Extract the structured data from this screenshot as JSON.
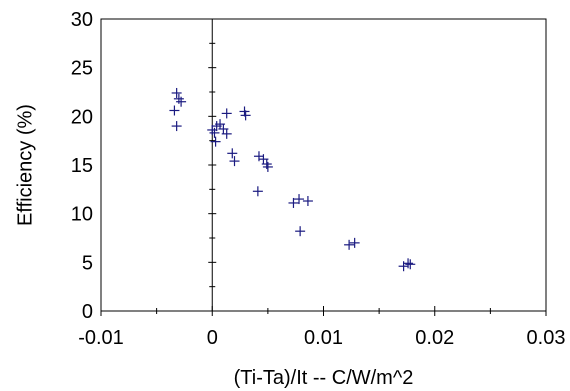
{
  "chart_data": {
    "type": "scatter",
    "title": "",
    "xlabel": "(Ti-Ta)/It -- C/W/m^2",
    "ylabel": "Efficiency (%)",
    "xlim": [
      -0.01,
      0.03
    ],
    "ylim": [
      0,
      30
    ],
    "xticks": [
      -0.01,
      0,
      0.01,
      0.02,
      0.03
    ],
    "xtick_labels": [
      "-0.01",
      "0",
      "0.01",
      "0.02",
      "0.03"
    ],
    "yticks": [
      0,
      5,
      10,
      15,
      20,
      25,
      30
    ],
    "ytick_labels": [
      "0",
      "5",
      "10",
      "15",
      "20",
      "25",
      "30"
    ],
    "grid": false,
    "legend": "none",
    "marker": "plus",
    "marker_color": "#1a1a80",
    "series": [
      {
        "points": [
          {
            "x": -0.0032,
            "y": 22.4
          },
          {
            "x": -0.003,
            "y": 21.8
          },
          {
            "x": -0.0028,
            "y": 21.5
          },
          {
            "x": -0.0034,
            "y": 20.6
          },
          {
            "x": -0.0032,
            "y": 19.0
          },
          {
            "x": 0.0,
            "y": 18.6
          },
          {
            "x": 0.0002,
            "y": 18.3
          },
          {
            "x": 0.0004,
            "y": 19.0
          },
          {
            "x": 0.0007,
            "y": 19.2
          },
          {
            "x": 0.001,
            "y": 18.7
          },
          {
            "x": 0.0013,
            "y": 18.2
          },
          {
            "x": 0.0003,
            "y": 17.4
          },
          {
            "x": 0.0013,
            "y": 20.3
          },
          {
            "x": 0.0029,
            "y": 20.5
          },
          {
            "x": 0.003,
            "y": 20.1
          },
          {
            "x": 0.0018,
            "y": 16.2
          },
          {
            "x": 0.002,
            "y": 15.4
          },
          {
            "x": 0.0042,
            "y": 15.9
          },
          {
            "x": 0.0046,
            "y": 15.6
          },
          {
            "x": 0.0049,
            "y": 15.1
          },
          {
            "x": 0.005,
            "y": 14.8
          },
          {
            "x": 0.0041,
            "y": 12.3
          },
          {
            "x": 0.0073,
            "y": 11.1
          },
          {
            "x": 0.0078,
            "y": 11.5
          },
          {
            "x": 0.0086,
            "y": 11.3
          },
          {
            "x": 0.0079,
            "y": 8.2
          },
          {
            "x": 0.0123,
            "y": 6.8
          },
          {
            "x": 0.0128,
            "y": 7.0
          },
          {
            "x": 0.0172,
            "y": 4.6
          },
          {
            "x": 0.0176,
            "y": 4.9
          },
          {
            "x": 0.0178,
            "y": 4.8
          }
        ]
      }
    ]
  }
}
